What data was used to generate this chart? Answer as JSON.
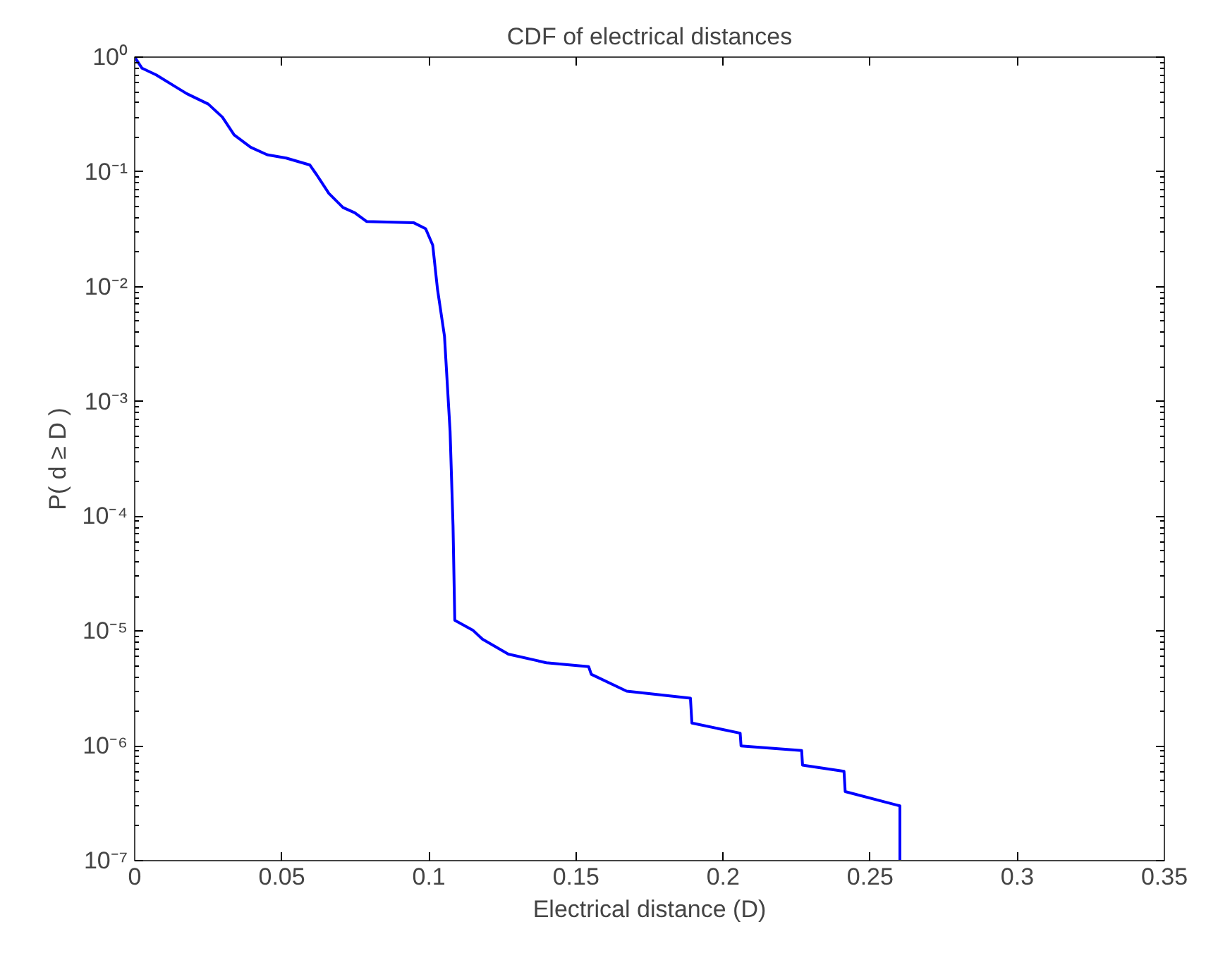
{
  "chart_data": {
    "type": "line",
    "title": "CDF of electrical distances",
    "xlabel": "Electrical distance (D)",
    "ylabel": "P( d ≥ D )",
    "log": "y",
    "grid": false,
    "marker": "none",
    "line_style": "solid",
    "xlim": [
      0,
      0.35
    ],
    "xticks": [
      {
        "value": 0,
        "label": "0"
      },
      0.05,
      0.1,
      0.15,
      0.2,
      0.25,
      0.3,
      0.35
    ],
    "ylim": [
      1e-07,
      1
    ],
    "yticks": [
      {
        "value": 1e-07,
        "label": "10⁻⁷"
      },
      {
        "value": 1e-06,
        "label": "10⁻⁶"
      },
      {
        "value": 1e-05,
        "label": "10⁻⁵"
      },
      {
        "value": 0.0001,
        "label": "10⁻⁴"
      },
      {
        "value": 0.001,
        "label": "10⁻³"
      },
      {
        "value": 0.01,
        "label": "10⁻²"
      },
      {
        "value": 0.1,
        "label": "10⁻¹"
      },
      {
        "value": 1,
        "label": "10⁰"
      }
    ],
    "series": [
      {
        "color": "#0000ff",
        "x": [
          0,
          0.0025,
          0.0073,
          0.0177,
          0.025,
          0.0298,
          0.0338,
          0.0394,
          0.045,
          0.0515,
          0.0595,
          0.0619,
          0.066,
          0.0708,
          0.0748,
          0.0788,
          0.0949,
          0.0989,
          0.1013,
          0.1029,
          0.1053,
          0.1072,
          0.1082,
          0.1088,
          0.1149,
          0.1182,
          0.127,
          0.1399,
          0.1543,
          0.1552,
          0.1672,
          0.1889,
          0.1894,
          0.2058,
          0.2061,
          0.2267,
          0.227,
          0.2411,
          0.2415,
          0.2601,
          0.2601
        ],
        "values": [
          1.0,
          0.8,
          0.7,
          0.48,
          0.39,
          0.3,
          0.21,
          0.164,
          0.141,
          0.132,
          0.115,
          0.094,
          0.065,
          0.049,
          0.044,
          0.037,
          0.036,
          0.032,
          0.023,
          0.0096,
          0.0037,
          0.00055,
          8.3e-05,
          1.24e-05,
          1.02e-05,
          8.5e-06,
          6.3e-06,
          5.3e-06,
          4.9e-06,
          4.2e-06,
          3e-06,
          2.6e-06,
          1.58e-06,
          1.29e-06,
          1e-06,
          9.1e-07,
          6.8e-07,
          6e-07,
          4e-07,
          3e-07,
          1e-07
        ]
      }
    ]
  }
}
